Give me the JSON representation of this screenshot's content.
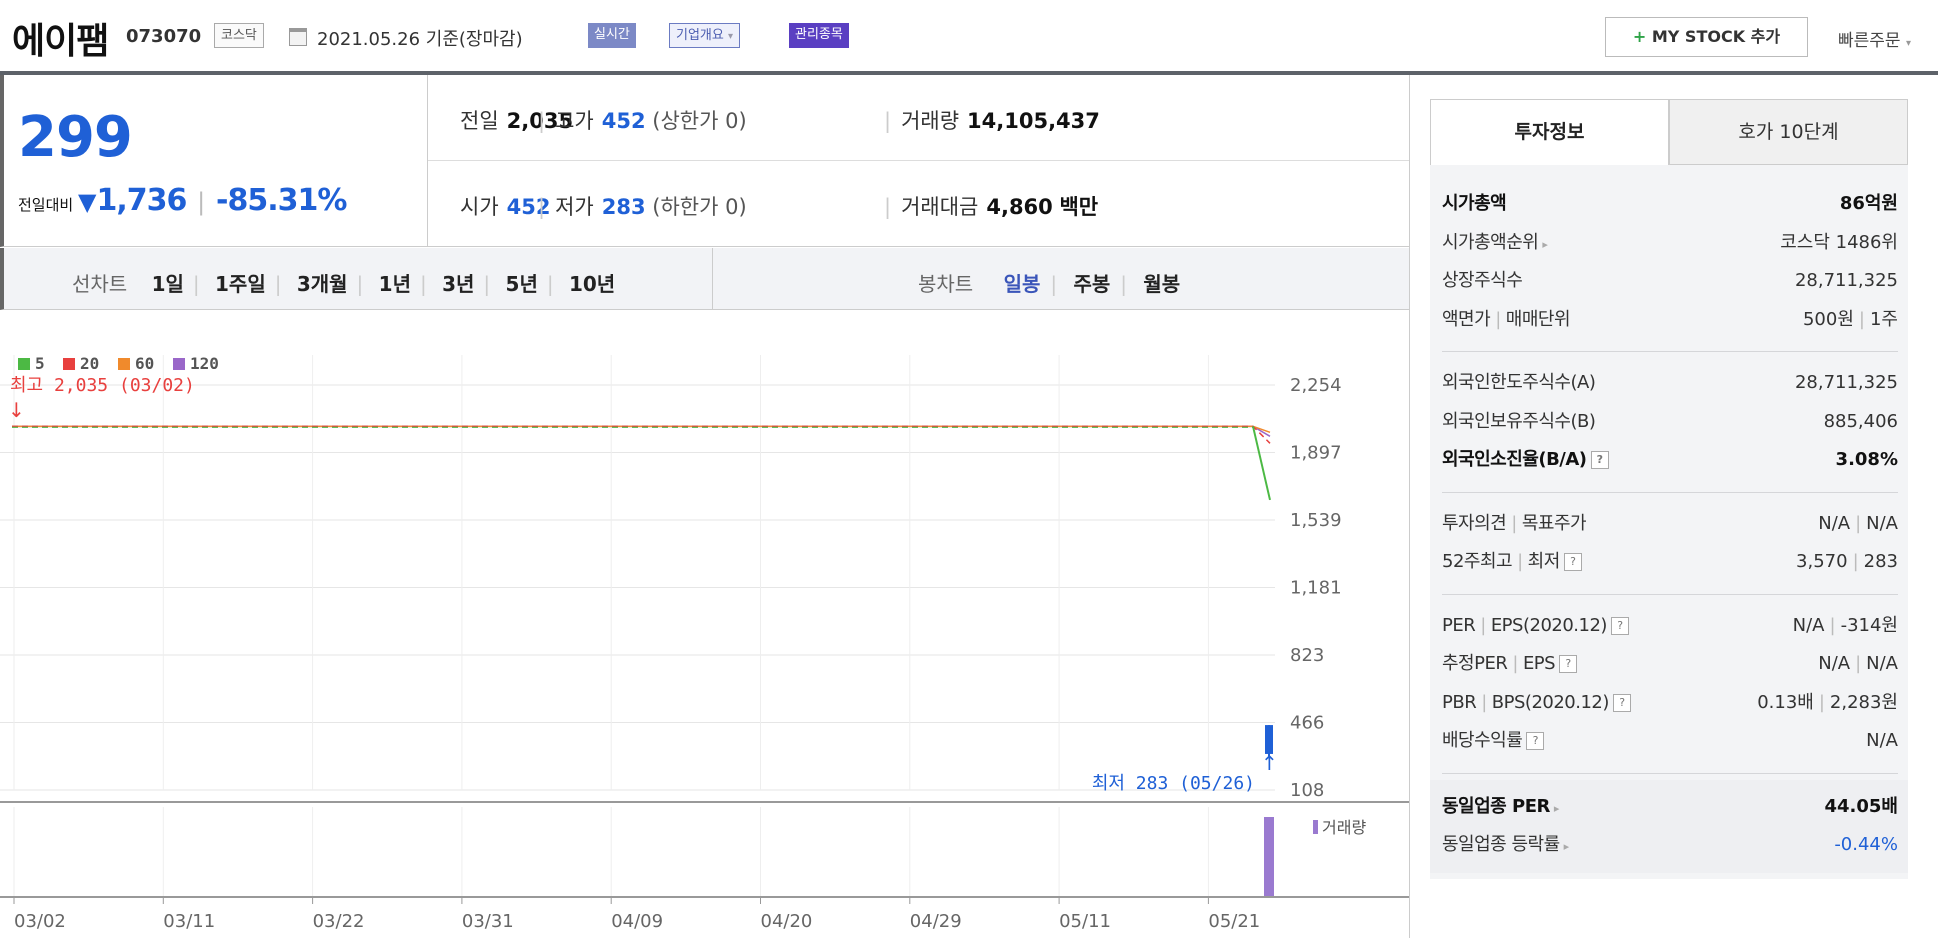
{
  "header": {
    "company": "에이팸",
    "code": "073070",
    "market": "코스닥",
    "date": "2021.05.26 기준(장마감)",
    "realtime": "실시간",
    "company_info": "기업개요",
    "company_info_caret": "▾",
    "admin_issue": "관리종목",
    "mystock_plus": "+",
    "mystock": "MY STOCK 추가",
    "quick_order": "빠른주문",
    "quick_order_caret": "▾"
  },
  "price": {
    "current": "299",
    "change_label": "전일대비",
    "change_icon": "triangle-down-icon",
    "change": "1,736",
    "change_pct": "-85.31%",
    "colors": {
      "down": "#1f60d6"
    }
  },
  "stats": {
    "prev_label": "전일",
    "prev": "2,035",
    "high_label": "고가",
    "high": "452",
    "high_sub": "(상한가 0)",
    "volume_label": "거래량",
    "volume": "14,105,437",
    "open_label": "시가",
    "open": "452",
    "low_label": "저가",
    "low": "283",
    "low_sub": "(하한가 0)",
    "amount_label": "거래대금",
    "amount": "4,860",
    "amount_unit": "백만"
  },
  "period": {
    "line_label": "선차트",
    "line_items": [
      "1일",
      "1주일",
      "3개월",
      "1년",
      "3년",
      "5년",
      "10년"
    ],
    "candle_label": "봉차트",
    "candle_items": [
      "일봉",
      "주봉",
      "월봉"
    ],
    "candle_selected": "일봉"
  },
  "chart_data": {
    "type": "line",
    "legend": [
      {
        "name": "5",
        "color": "#4cb944"
      },
      {
        "name": "20",
        "color": "#e8403e"
      },
      {
        "name": "60",
        "color": "#f08a2c"
      },
      {
        "name": "120",
        "color": "#9a67c9"
      }
    ],
    "y_ticks": [
      "2,254",
      "1,897",
      "1,539",
      "1,181",
      "823",
      "466",
      "108"
    ],
    "x_ticks": [
      "03/02",
      "03/11",
      "03/22",
      "03/31",
      "04/09",
      "04/20",
      "04/29",
      "05/11",
      "05/21"
    ],
    "ylim": [
      108,
      2254
    ],
    "max_label": "최고 2,035 (03/02)",
    "min_label": "최저 283 (05/26)",
    "max_value": 2035,
    "ma5_last": 1645,
    "ma20_last": 1945,
    "last_candle": {
      "open": 452,
      "high": 452,
      "low": 283,
      "close": 299
    },
    "volume_label": "거래량"
  },
  "invest": {
    "tab_active": "투자정보",
    "tab_other": "호가 10단계",
    "market_cap_label": "시가총액",
    "market_cap": "86억원",
    "market_cap_rank_label": "시가총액순위",
    "market_cap_rank": "코스닥 1486위",
    "shares_label": "상장주식수",
    "shares": "28,711,325",
    "face_label": "액면가",
    "unit_label": "매매단위",
    "face": "500원",
    "unit": "1주",
    "foreign_limit_label": "외국인한도주식수(A)",
    "foreign_limit": "28,711,325",
    "foreign_hold_label": "외국인보유주식수(B)",
    "foreign_hold": "885,406",
    "foreign_ratio_label": "외국인소진율(B/A)",
    "foreign_ratio": "3.08%",
    "opinion_label": "투자의견",
    "target_label": "목표주가",
    "opinion": "N/A",
    "target": "N/A",
    "wk52_high_label": "52주최고",
    "wk52_low_label": "최저",
    "wk52_high": "3,570",
    "wk52_low": "283",
    "per_label": "PER",
    "eps_label": "EPS(2020.12)",
    "per": "N/A",
    "eps": "-314원",
    "est_per_label": "추정PER",
    "est_eps_label": "EPS",
    "est_per": "N/A",
    "est_eps": "N/A",
    "pbr_label": "PBR",
    "bps_label": "BPS(2020.12)",
    "pbr": "0.13배",
    "bps": "2,283원",
    "div_label": "배당수익률",
    "div": "N/A",
    "ind_per_label": "동일업종 PER",
    "ind_per": "44.05배",
    "ind_rate_label": "동일업종 등락률",
    "ind_rate": "-0.44%",
    "help_icon": "?",
    "pipe": "|"
  }
}
